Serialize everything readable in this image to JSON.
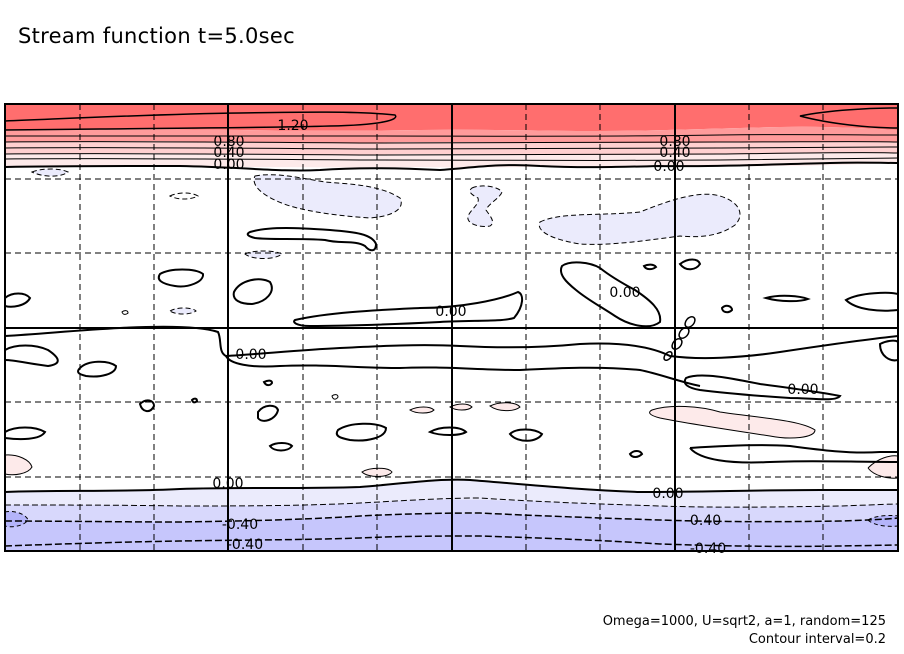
{
  "chart_data": {
    "type": "contour",
    "title": "Stream function t=5.0sec",
    "contour_interval": 0.2,
    "levels": [
      -0.4,
      -0.2,
      0.0,
      0.2,
      0.4,
      0.6,
      0.8,
      1.0,
      1.2
    ],
    "labels": [
      {
        "text": "1.20"
      },
      {
        "text": "0.80"
      },
      {
        "text": "0.40"
      },
      {
        "text": "0.00"
      },
      {
        "text": "0.80"
      },
      {
        "text": "0.40"
      },
      {
        "text": "0.00"
      },
      {
        "text": "0.00"
      },
      {
        "text": "0.00"
      },
      {
        "text": "0.00"
      },
      {
        "text": "0.00"
      },
      {
        "text": "0.00"
      },
      {
        "text": "0.00"
      },
      {
        "text": "-0.40"
      },
      {
        "text": "-0.40"
      },
      {
        "text": "-0.40"
      },
      {
        "text": "-0.40"
      }
    ],
    "colors": {
      "positive_strong": "#ff6e6e",
      "positive_mid": "#ff9b9b",
      "positive_light": "#ffd0d0",
      "positive_faint": "#fdeaea",
      "negative_faint": "#ebebfc",
      "negative_light": "#d8d8fc",
      "negative_strong": "#c6c6fc"
    },
    "grid": true,
    "xlabel": "",
    "ylabel": ""
  },
  "footer": {
    "params": "Omega=1000, U=sqrt2, a=1, random=125",
    "interval": "Contour interval=0.2"
  }
}
